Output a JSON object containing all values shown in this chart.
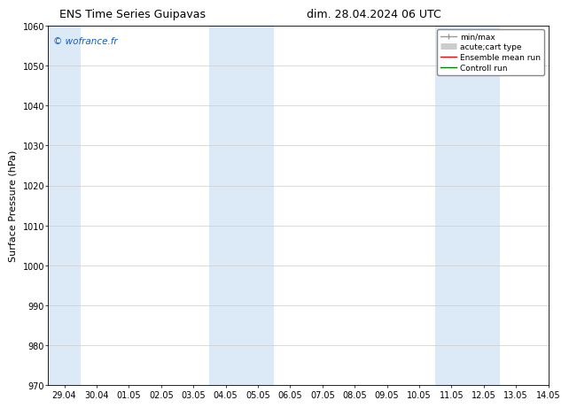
{
  "title_left": "ENS Time Series Guipavas",
  "title_right": "dim. 28.04.2024 06 UTC",
  "ylabel": "Surface Pressure (hPa)",
  "ylim": [
    970,
    1060
  ],
  "yticks": [
    970,
    980,
    990,
    1000,
    1010,
    1020,
    1030,
    1040,
    1050,
    1060
  ],
  "xlim_start": 0,
  "xlim_end": 15,
  "xtick_labels": [
    "29.04",
    "30.04",
    "01.05",
    "02.05",
    "03.05",
    "04.05",
    "05.05",
    "06.05",
    "07.05",
    "08.05",
    "09.05",
    "10.05",
    "11.05",
    "12.05",
    "13.05",
    "14.05"
  ],
  "xtick_positions": [
    0,
    1,
    2,
    3,
    4,
    5,
    6,
    7,
    8,
    9,
    10,
    11,
    12,
    13,
    14,
    15
  ],
  "shaded_bands": [
    {
      "xmin": -0.5,
      "xmax": 0.5
    },
    {
      "xmin": 4.5,
      "xmax": 6.5
    },
    {
      "xmin": 11.5,
      "xmax": 13.5
    }
  ],
  "band_color": "#dceaf7",
  "watermark": "© wofrance.fr",
  "watermark_color": "#1a5eb8",
  "background_color": "#ffffff",
  "legend_entries": [
    {
      "label": "min/max",
      "color": "#999999",
      "lw": 1.0
    },
    {
      "label": "acute;cart type",
      "color": "#cccccc",
      "lw": 5
    },
    {
      "label": "Ensemble mean run",
      "color": "red",
      "lw": 1.0
    },
    {
      "label": "Controll run",
      "color": "green",
      "lw": 1.0
    }
  ],
  "grid_color": "#cccccc",
  "title_fontsize": 9,
  "tick_fontsize": 7,
  "ylabel_fontsize": 8,
  "legend_fontsize": 6.5
}
